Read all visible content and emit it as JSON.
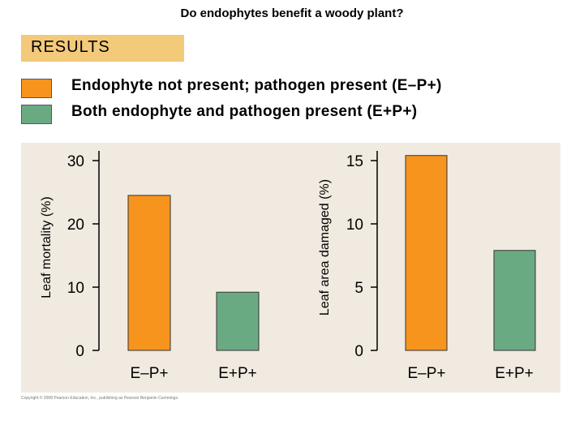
{
  "title": "Do endophytes benefit a woody plant?",
  "section_label": "RESULTS",
  "legend": [
    {
      "label": "Endophyte not present; pathogen present (E–P+)",
      "color": "#f7941d"
    },
    {
      "label": "Both endophyte and pathogen present (E+P+)",
      "color": "#6aaa83"
    }
  ],
  "colors": {
    "panel_bg": "#f0eae0",
    "axis": "#000000",
    "bar_stroke": "#333333"
  },
  "copyright": "Copyright © 2008 Pearson Education, Inc., publishing as Pearson Benjamin Cummings.",
  "chart_data": [
    {
      "type": "bar",
      "categories": [
        "E–P+",
        "E+P+"
      ],
      "values": [
        24.5,
        9.2
      ],
      "colors": [
        "#f7941d",
        "#6aaa83"
      ],
      "ylabel": "Leaf mortality (%)",
      "ylim": [
        0,
        30
      ],
      "yticks": [
        0,
        10,
        20,
        30
      ]
    },
    {
      "type": "bar",
      "categories": [
        "E–P+",
        "E+P+"
      ],
      "values": [
        15.4,
        7.9
      ],
      "colors": [
        "#f7941d",
        "#6aaa83"
      ],
      "ylabel": "Leaf area damaged (%)",
      "ylim": [
        0,
        15
      ],
      "yticks": [
        0,
        5,
        10,
        15
      ]
    }
  ]
}
